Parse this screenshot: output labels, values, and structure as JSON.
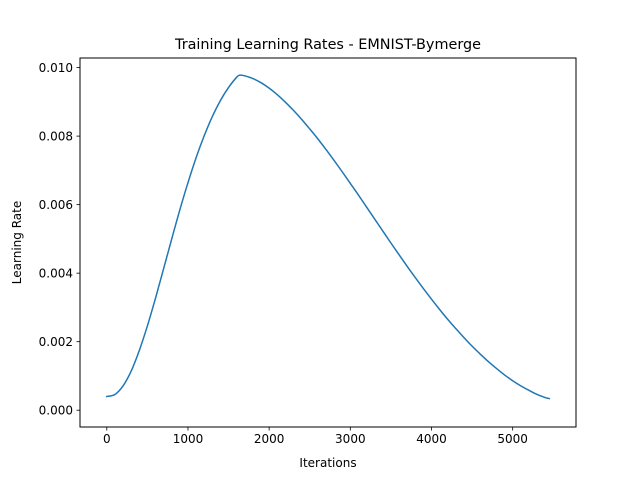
{
  "chart_data": {
    "type": "line",
    "title": "Training Learning Rates - EMNIST-Bymerge",
    "xlabel": "Iterations",
    "ylabel": "Learning Rate",
    "xlim": [
      -330,
      5780
    ],
    "ylim": [
      -0.00049,
      0.01028
    ],
    "x_ticks": [
      0,
      1000,
      2000,
      3000,
      4000,
      5000
    ],
    "x_tick_labels": [
      "0",
      "1000",
      "2000",
      "3000",
      "4000",
      "5000"
    ],
    "y_ticks": [
      0.0,
      0.002,
      0.004,
      0.006,
      0.008,
      0.01
    ],
    "y_tick_labels": [
      "0.000",
      "0.002",
      "0.004",
      "0.006",
      "0.008",
      "0.010"
    ],
    "grid": false,
    "legend": "none",
    "series": [
      {
        "color": "#1f77b4",
        "x": [
          0,
          100,
          200,
          300,
          400,
          500,
          600,
          700,
          800,
          900,
          1000,
          1100,
          1200,
          1300,
          1400,
          1500,
          1600,
          1640,
          1700,
          1800,
          1900,
          2000,
          2100,
          2200,
          2300,
          2400,
          2500,
          2600,
          2700,
          2800,
          2900,
          3000,
          3100,
          3200,
          3300,
          3400,
          3500,
          3600,
          3700,
          3800,
          3900,
          4000,
          4100,
          4200,
          4300,
          4400,
          4500,
          4600,
          4700,
          4800,
          4900,
          5000,
          5100,
          5200,
          5300,
          5400,
          5450
        ],
        "y": [
          0.0004,
          0.00046,
          0.00071,
          0.00114,
          0.00174,
          0.00246,
          0.00327,
          0.00413,
          0.005,
          0.00585,
          0.00664,
          0.00737,
          0.00801,
          0.00857,
          0.00904,
          0.00942,
          0.00972,
          0.00978,
          0.00976,
          0.00968,
          0.00956,
          0.0094,
          0.00921,
          0.00899,
          0.00875,
          0.00849,
          0.00821,
          0.00792,
          0.00761,
          0.00729,
          0.00696,
          0.00662,
          0.00628,
          0.00593,
          0.00558,
          0.00523,
          0.00488,
          0.00454,
          0.0042,
          0.00387,
          0.00355,
          0.00324,
          0.00294,
          0.00265,
          0.00238,
          0.00212,
          0.00187,
          0.00164,
          0.00142,
          0.00122,
          0.00103,
          0.00086,
          0.00071,
          0.00058,
          0.00046,
          0.00037,
          0.00034
        ]
      }
    ]
  }
}
